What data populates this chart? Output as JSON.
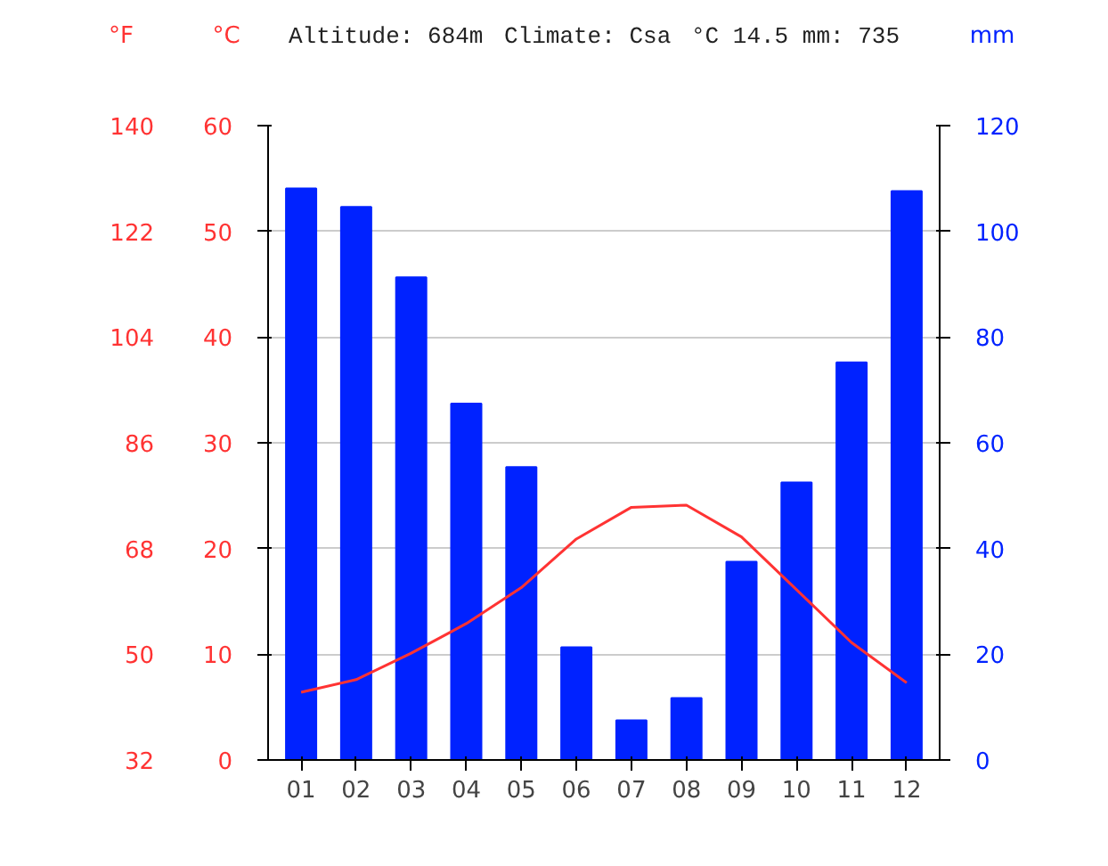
{
  "chart_data": {
    "type": "bar",
    "title": "Altitude: 684m",
    "annotations": [
      "Climate: Csa",
      "°C 14.5 mm: 735"
    ],
    "categories": [
      "01",
      "02",
      "03",
      "04",
      "05",
      "06",
      "07",
      "08",
      "09",
      "10",
      "11",
      "12"
    ],
    "series": [
      {
        "type": "bar",
        "axis": "y2",
        "color": "#0022ff",
        "values": [
          108.1,
          104.6,
          91.3,
          67.4,
          55.4,
          21.3,
          7.5,
          11.7,
          37.5,
          52.5,
          75.2,
          107.6
        ]
      },
      {
        "type": "line",
        "axis": "y",
        "color": "#ff3333",
        "values": [
          6.4,
          7.6,
          10.1,
          12.9,
          16.3,
          20.9,
          23.9,
          24.1,
          21.1,
          16.1,
          11.1,
          7.3
        ]
      }
    ],
    "ylabel": "°C",
    "ylim": [
      0,
      60
    ],
    "yticks": [
      0,
      10,
      20,
      30,
      40,
      50,
      60
    ],
    "y2label": "mm",
    "y2lim": [
      0,
      120
    ],
    "y2ticks": [
      0,
      20,
      40,
      60,
      80,
      100,
      120
    ],
    "y3label": "°F",
    "y3lim": [
      32,
      140
    ],
    "y3ticks": [
      32,
      50,
      68,
      86,
      104,
      122,
      140
    ],
    "grid": "y"
  }
}
